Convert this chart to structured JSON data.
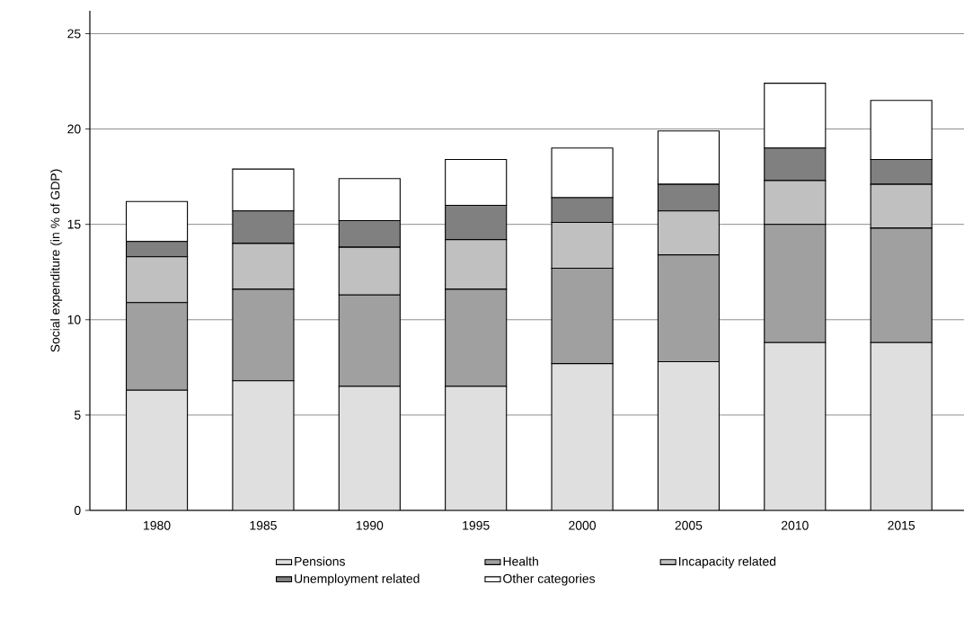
{
  "chart_data": {
    "type": "bar",
    "stacked": true,
    "ylabel": "Social expenditure (in % of GDP)",
    "categories": [
      "1980",
      "1985",
      "1990",
      "1995",
      "2000",
      "2005",
      "2010",
      "2015"
    ],
    "series": [
      {
        "name": "Pensions",
        "color": "#dfdfdf",
        "values": [
          6.3,
          6.8,
          6.5,
          6.5,
          7.7,
          7.8,
          8.8,
          8.8
        ]
      },
      {
        "name": "Health",
        "color": "#a0a0a0",
        "values": [
          4.6,
          4.8,
          4.8,
          5.1,
          5.0,
          5.6,
          6.2,
          6.0
        ]
      },
      {
        "name": "Incapacity related",
        "color": "#c0c0c0",
        "values": [
          2.4,
          2.4,
          2.5,
          2.6,
          2.4,
          2.3,
          2.3,
          2.3
        ]
      },
      {
        "name": "Unemployment related",
        "color": "#808080",
        "values": [
          0.8,
          1.7,
          1.4,
          1.8,
          1.3,
          1.4,
          1.7,
          1.3
        ]
      },
      {
        "name": "Other categories",
        "color": "#ffffff",
        "values": [
          2.1,
          2.2,
          2.2,
          2.4,
          2.6,
          2.8,
          3.4,
          3.1
        ]
      }
    ],
    "ylim": [
      0,
      26.2
    ],
    "yticks": [
      0,
      5,
      10,
      15,
      20,
      25
    ],
    "grid": "y",
    "legend": "bottom"
  }
}
